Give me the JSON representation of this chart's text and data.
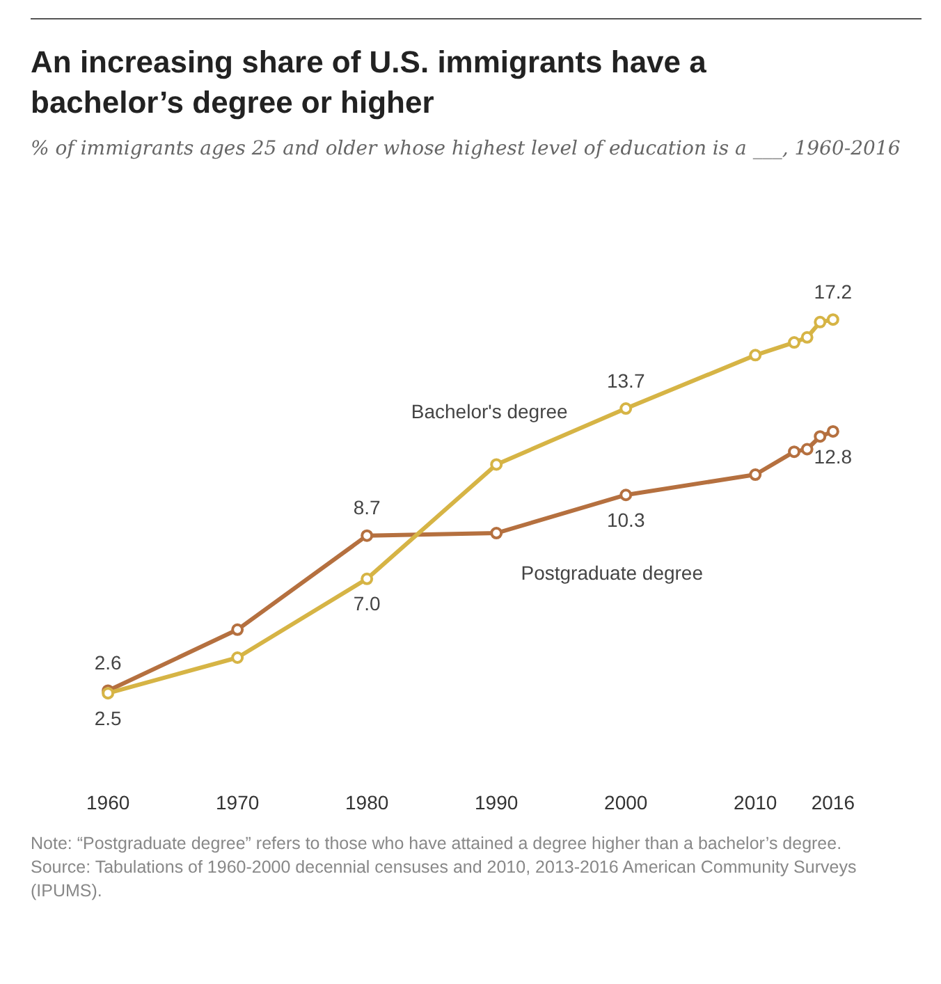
{
  "chart_data": {
    "type": "line",
    "title": "An increasing share of U.S. immigrants have a bachelor’s degree or higher",
    "subtitle": "% of immigrants ages 25 and older whose highest level of education is a ___, 1960-2016",
    "x": [
      1960,
      1970,
      1980,
      1990,
      2000,
      2010,
      2013,
      2014,
      2015,
      2016
    ],
    "series": [
      {
        "name": "Bachelor's degree",
        "color": "#d6b445",
        "values": [
          2.5,
          3.9,
          7.0,
          11.5,
          13.7,
          15.8,
          16.3,
          16.5,
          17.1,
          17.2
        ],
        "value_labels": [
          "2.5",
          null,
          "7.0",
          null,
          "13.7",
          null,
          null,
          null,
          null,
          "17.2"
        ]
      },
      {
        "name": "Postgraduate degree",
        "color": "#b5703f",
        "values": [
          2.6,
          5.0,
          8.7,
          8.8,
          10.3,
          11.1,
          12.0,
          12.1,
          12.6,
          12.8
        ],
        "value_labels": [
          "2.6",
          null,
          "8.7",
          null,
          "10.3",
          null,
          null,
          null,
          null,
          "12.8"
        ]
      }
    ],
    "xlim": [
      1960,
      2016
    ],
    "xticks": [
      1960,
      1970,
      1980,
      1990,
      2000,
      2010,
      2016
    ],
    "grid": false,
    "legend": false,
    "marker": "circle",
    "line_style": "solid",
    "annotations": [
      "Note: “Postgraduate degree” refers to those who have attained a degree higher than a bachelor’s degree.",
      "Source: Tabulations of 1960-2000 decennial censuses and 2010, 2013-2016 American Community Surveys (IPUMS)."
    ]
  }
}
